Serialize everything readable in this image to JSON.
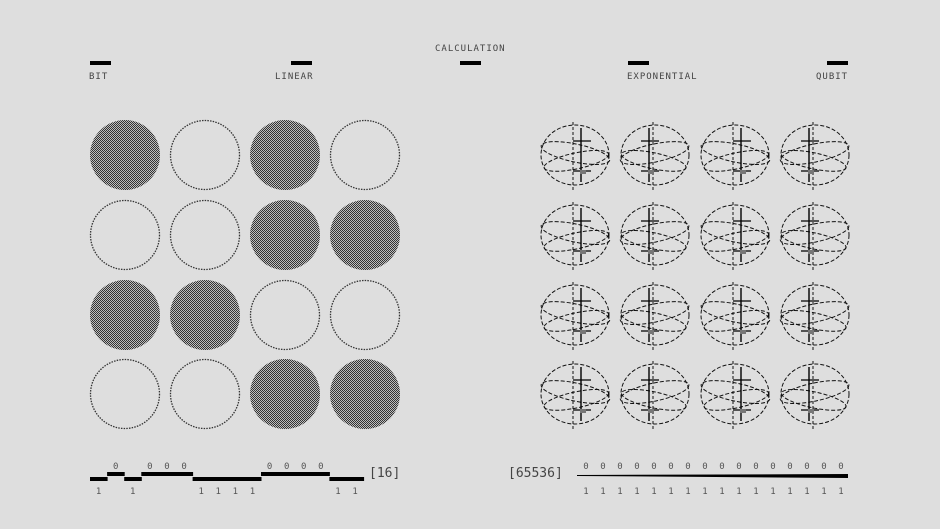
{
  "header": {
    "center_label": "CALCULATION",
    "left_label": "BIT",
    "left_center_label": "LINEAR",
    "right_center_label": "EXPONENTIAL",
    "right_label": "QUBIT"
  },
  "bit_panel": {
    "bits": [
      1,
      0,
      1,
      0,
      0,
      0,
      1,
      1,
      1,
      1,
      0,
      0,
      0,
      0,
      1,
      1
    ],
    "count_label": "[16]",
    "fill_color": "#6a6a6a"
  },
  "qubit_panel": {
    "zeros": [
      "0",
      "0",
      "0",
      "0",
      "0",
      "0",
      "0",
      "0",
      "0",
      "0",
      "0",
      "0",
      "0",
      "0",
      "0",
      "0"
    ],
    "ones": [
      "1",
      "1",
      "1",
      "1",
      "1",
      "1",
      "1",
      "1",
      "1",
      "1",
      "1",
      "1",
      "1",
      "1",
      "1",
      "1"
    ],
    "count_label": "[65536]",
    "grid_rows": 4,
    "grid_cols": 4
  }
}
